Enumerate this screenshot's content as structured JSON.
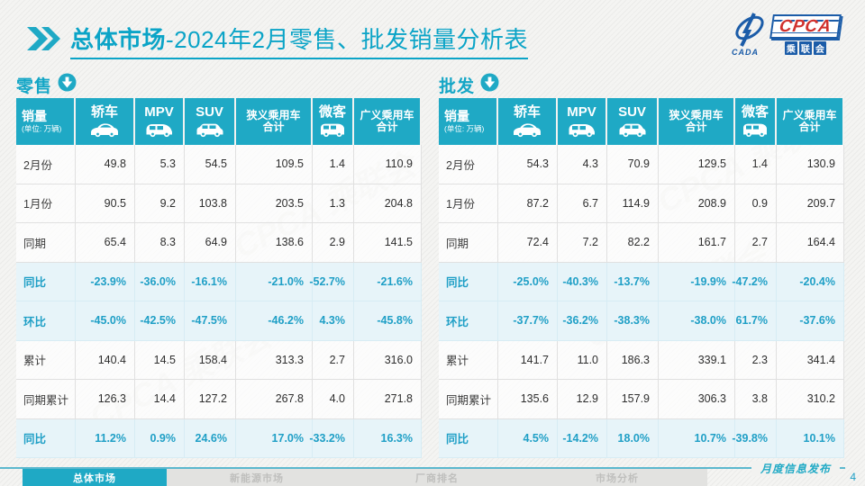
{
  "header": {
    "chevron_icon": "double-chevron-right-icon",
    "title_highlight": "总体市场",
    "title_rest": "-2024年2月零售、批发销量分析表"
  },
  "logo": {
    "swoosh_icon": "cada-swoosh-icon",
    "swoosh_text": "CADA",
    "acronym": "CPCA",
    "chinese_name": "乘联会"
  },
  "colors": {
    "accent": "#1FA9C5",
    "title_text": "#0BA4C7",
    "highlight_row_bg": "#E7F4F9",
    "highlight_text": "#1F9FC6",
    "logo_blue": "#1B5CA8",
    "logo_red": "#D0312D"
  },
  "watermark_text": "CPCA 乘联会",
  "tables": [
    {
      "name": "零售",
      "section_icon": "download-circle-icon",
      "corner": {
        "title": "销量",
        "unit": "(单位: 万辆)"
      },
      "columns": [
        {
          "label": "轿车",
          "icon": "sedan-icon"
        },
        {
          "label": "MPV",
          "icon": "mpv-icon"
        },
        {
          "label": "SUV",
          "icon": "suv-icon"
        },
        {
          "label": "狭义乘用车\n合计",
          "icon": null
        },
        {
          "label": "微客",
          "icon": "microvan-icon"
        },
        {
          "label": "广义乘用车\n合计",
          "icon": null
        }
      ],
      "rows": [
        {
          "label": "2月份",
          "highlight": false,
          "values": [
            "49.8",
            "5.3",
            "54.5",
            "109.5",
            "1.4",
            "110.9"
          ]
        },
        {
          "label": "1月份",
          "highlight": false,
          "values": [
            "90.5",
            "9.2",
            "103.8",
            "203.5",
            "1.3",
            "204.8"
          ]
        },
        {
          "label": "同期",
          "highlight": false,
          "values": [
            "65.4",
            "8.3",
            "64.9",
            "138.6",
            "2.9",
            "141.5"
          ]
        },
        {
          "label": "同比",
          "highlight": true,
          "values": [
            "-23.9%",
            "-36.0%",
            "-16.1%",
            "-21.0%",
            "-52.7%",
            "-21.6%"
          ]
        },
        {
          "label": "环比",
          "highlight": true,
          "values": [
            "-45.0%",
            "-42.5%",
            "-47.5%",
            "-46.2%",
            "4.3%",
            "-45.8%"
          ]
        },
        {
          "label": "累计",
          "highlight": false,
          "values": [
            "140.4",
            "14.5",
            "158.4",
            "313.3",
            "2.7",
            "316.0"
          ]
        },
        {
          "label": "同期累计",
          "highlight": false,
          "values": [
            "126.3",
            "14.4",
            "127.2",
            "267.8",
            "4.0",
            "271.8"
          ]
        },
        {
          "label": "同比",
          "highlight": true,
          "values": [
            "11.2%",
            "0.9%",
            "24.6%",
            "17.0%",
            "-33.2%",
            "16.3%"
          ]
        }
      ]
    },
    {
      "name": "批发",
      "section_icon": "download-circle-icon",
      "corner": {
        "title": "销量",
        "unit": "(单位: 万辆)"
      },
      "columns": [
        {
          "label": "轿车",
          "icon": "sedan-icon"
        },
        {
          "label": "MPV",
          "icon": "mpv-icon"
        },
        {
          "label": "SUV",
          "icon": "suv-icon"
        },
        {
          "label": "狭义乘用车\n合计",
          "icon": null
        },
        {
          "label": "微客",
          "icon": "microvan-icon"
        },
        {
          "label": "广义乘用车\n合计",
          "icon": null
        }
      ],
      "rows": [
        {
          "label": "2月份",
          "highlight": false,
          "values": [
            "54.3",
            "4.3",
            "70.9",
            "129.5",
            "1.4",
            "130.9"
          ]
        },
        {
          "label": "1月份",
          "highlight": false,
          "values": [
            "87.2",
            "6.7",
            "114.9",
            "208.9",
            "0.9",
            "209.7"
          ]
        },
        {
          "label": "同期",
          "highlight": false,
          "values": [
            "72.4",
            "7.2",
            "82.2",
            "161.7",
            "2.7",
            "164.4"
          ]
        },
        {
          "label": "同比",
          "highlight": true,
          "values": [
            "-25.0%",
            "-40.3%",
            "-13.7%",
            "-19.9%",
            "-47.2%",
            "-20.4%"
          ]
        },
        {
          "label": "环比",
          "highlight": true,
          "values": [
            "-37.7%",
            "-36.2%",
            "-38.3%",
            "-38.0%",
            "61.7%",
            "-37.6%"
          ]
        },
        {
          "label": "累计",
          "highlight": false,
          "values": [
            "141.7",
            "11.0",
            "186.3",
            "339.1",
            "2.3",
            "341.4"
          ]
        },
        {
          "label": "同期累计",
          "highlight": false,
          "values": [
            "135.6",
            "12.9",
            "157.9",
            "306.3",
            "3.8",
            "310.2"
          ]
        },
        {
          "label": "同比",
          "highlight": true,
          "values": [
            "4.5%",
            "-14.2%",
            "18.0%",
            "10.7%",
            "-39.8%",
            "10.1%"
          ]
        }
      ]
    }
  ],
  "footer": {
    "tabs": [
      {
        "label": "总体市场",
        "active": true
      },
      {
        "label": "新能源市场",
        "active": false
      },
      {
        "label": "厂商排名",
        "active": false
      },
      {
        "label": "市场分析",
        "active": false
      }
    ],
    "publish_label": "月度信息发布",
    "page_number": "4"
  }
}
